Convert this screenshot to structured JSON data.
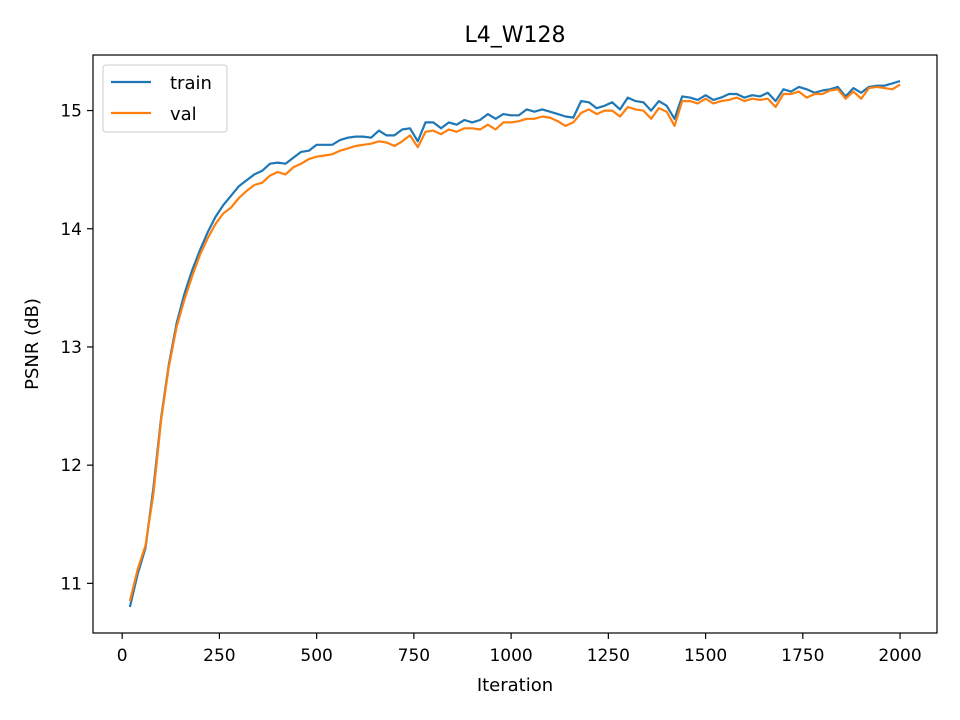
{
  "chart_data": {
    "type": "line",
    "title": "L4_W128",
    "xlabel": "Iteration",
    "ylabel": "PSNR (dB)",
    "xlim": [
      -75,
      2095
    ],
    "ylim": [
      10.58,
      15.47
    ],
    "xticks": [
      0,
      250,
      500,
      750,
      1000,
      1250,
      1500,
      1750,
      2000
    ],
    "yticks": [
      11,
      12,
      13,
      14,
      15
    ],
    "grid": false,
    "legend_position": "top-left",
    "x": [
      20,
      40,
      60,
      80,
      100,
      120,
      140,
      160,
      180,
      200,
      220,
      240,
      260,
      280,
      300,
      320,
      340,
      360,
      380,
      400,
      420,
      440,
      460,
      480,
      500,
      520,
      540,
      560,
      580,
      600,
      620,
      640,
      660,
      680,
      700,
      720,
      740,
      760,
      780,
      800,
      820,
      840,
      860,
      880,
      900,
      920,
      940,
      960,
      980,
      1000,
      1020,
      1040,
      1060,
      1080,
      1100,
      1120,
      1140,
      1160,
      1180,
      1200,
      1220,
      1240,
      1260,
      1280,
      1300,
      1320,
      1340,
      1360,
      1380,
      1400,
      1420,
      1440,
      1460,
      1480,
      1500,
      1520,
      1540,
      1560,
      1580,
      1600,
      1620,
      1640,
      1660,
      1680,
      1700,
      1720,
      1740,
      1760,
      1780,
      1800,
      1820,
      1840,
      1860,
      1880,
      1900,
      1920,
      1940,
      1960,
      1980,
      2000
    ],
    "series": [
      {
        "name": "train",
        "color": "#1f77b4",
        "values": [
          10.8,
          11.08,
          11.3,
          11.8,
          12.4,
          12.85,
          13.2,
          13.45,
          13.65,
          13.82,
          13.97,
          14.1,
          14.2,
          14.28,
          14.36,
          14.41,
          14.46,
          14.49,
          14.55,
          14.56,
          14.55,
          14.6,
          14.65,
          14.66,
          14.71,
          14.71,
          14.71,
          14.75,
          14.77,
          14.78,
          14.78,
          14.77,
          14.83,
          14.79,
          14.79,
          14.84,
          14.85,
          14.74,
          14.9,
          14.9,
          14.85,
          14.9,
          14.88,
          14.92,
          14.9,
          14.92,
          14.97,
          14.93,
          14.97,
          14.96,
          14.96,
          15.01,
          14.99,
          15.01,
          14.99,
          14.97,
          14.95,
          14.94,
          15.08,
          15.07,
          15.02,
          15.04,
          15.07,
          15.01,
          15.11,
          15.08,
          15.07,
          15.0,
          15.08,
          15.04,
          14.93,
          15.12,
          15.11,
          15.09,
          15.13,
          15.09,
          15.11,
          15.14,
          15.14,
          15.11,
          15.13,
          15.12,
          15.15,
          15.08,
          15.18,
          15.16,
          15.2,
          15.18,
          15.15,
          15.17,
          15.18,
          15.2,
          15.12,
          15.19,
          15.15,
          15.2,
          15.21,
          15.21,
          15.23,
          15.25
        ]
      },
      {
        "name": "val",
        "color": "#ff7f0e",
        "values": [
          10.85,
          11.12,
          11.32,
          11.75,
          12.38,
          12.83,
          13.17,
          13.4,
          13.6,
          13.78,
          13.92,
          14.04,
          14.13,
          14.18,
          14.26,
          14.32,
          14.37,
          14.39,
          14.45,
          14.48,
          14.46,
          14.52,
          14.55,
          14.59,
          14.61,
          14.62,
          14.63,
          14.66,
          14.68,
          14.7,
          14.71,
          14.72,
          14.74,
          14.73,
          14.7,
          14.74,
          14.79,
          14.69,
          14.82,
          14.83,
          14.8,
          14.84,
          14.82,
          14.85,
          14.85,
          14.84,
          14.88,
          14.84,
          14.9,
          14.9,
          14.91,
          14.93,
          14.93,
          14.95,
          14.94,
          14.91,
          14.87,
          14.9,
          14.98,
          15.01,
          14.97,
          15.0,
          15.0,
          14.95,
          15.03,
          15.01,
          15.0,
          14.93,
          15.02,
          14.99,
          14.87,
          15.08,
          15.08,
          15.06,
          15.1,
          15.06,
          15.08,
          15.09,
          15.11,
          15.08,
          15.1,
          15.09,
          15.1,
          15.03,
          15.14,
          15.14,
          15.16,
          15.11,
          15.14,
          15.14,
          15.17,
          15.18,
          15.1,
          15.16,
          15.1,
          15.19,
          15.2,
          15.19,
          15.18,
          15.22
        ]
      }
    ]
  }
}
